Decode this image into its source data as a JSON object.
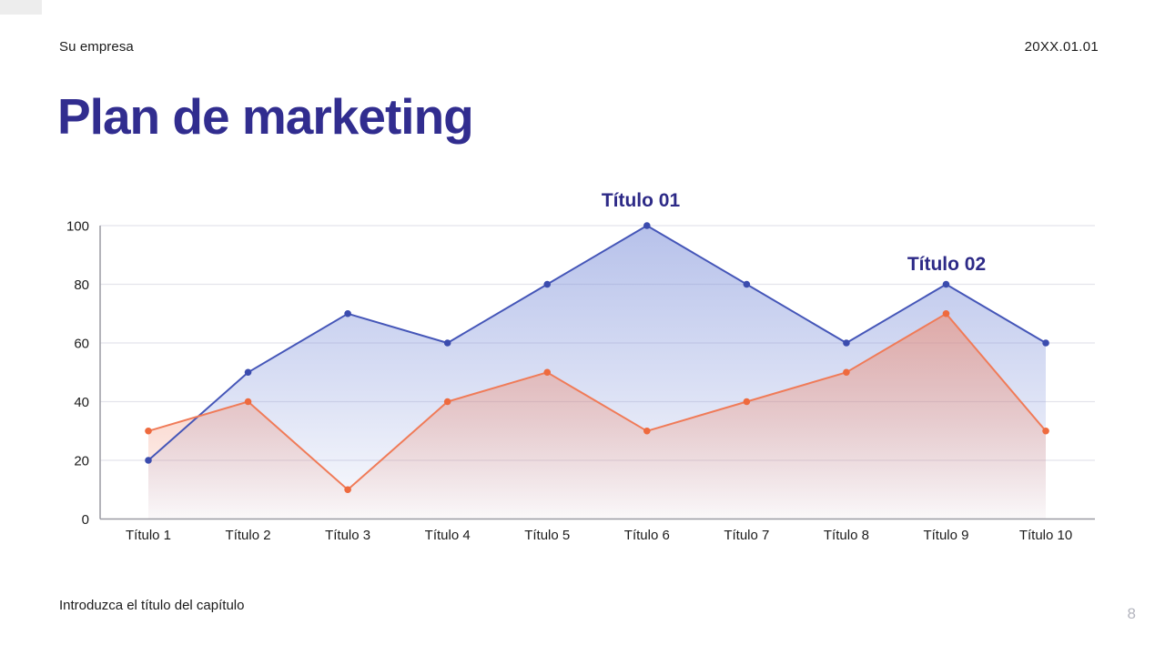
{
  "slide": {
    "company_label": "Su empresa",
    "date": "20XX.01.01",
    "title": "Plan de marketing",
    "chapter_note": "Introduzca el título del capítulo",
    "page_number": "8"
  },
  "colors": {
    "heading": "#312d8f",
    "series_label": "#2d2a87",
    "grid": "#e4e4ec",
    "axis": "#9a9aa2",
    "text": "#1b1b1b",
    "page_number": "#b4b5be"
  },
  "chart_data": {
    "type": "area",
    "title": "",
    "xlabel": "",
    "ylabel": "",
    "categories": [
      "Título 1",
      "Título 2",
      "Título 3",
      "Título 4",
      "Título 5",
      "Título 6",
      "Título 7",
      "Título 8",
      "Título 9",
      "Título 10"
    ],
    "series": [
      {
        "name": "Título 01",
        "values": [
          20,
          50,
          70,
          60,
          80,
          100,
          80,
          60,
          80,
          60
        ],
        "line_color": "#4556b8",
        "marker_color": "#3b4cae",
        "fill_color": "#7c8fd9"
      },
      {
        "name": "Título 02",
        "values": [
          30,
          40,
          10,
          40,
          50,
          30,
          40,
          50,
          70,
          30
        ],
        "line_color": "#f07b58",
        "marker_color": "#ee6a3e",
        "fill_color": "#f0896c"
      }
    ],
    "ylim": [
      0,
      100
    ],
    "yticks": [
      0,
      20,
      40,
      60,
      80,
      100
    ],
    "grid": true,
    "legend_position": "series-labels-above-peaks",
    "annotations": [
      {
        "text": "Título 01",
        "x": 704,
        "y": 227
      },
      {
        "text": "Título 02",
        "x": 1040,
        "y": 297
      }
    ]
  }
}
